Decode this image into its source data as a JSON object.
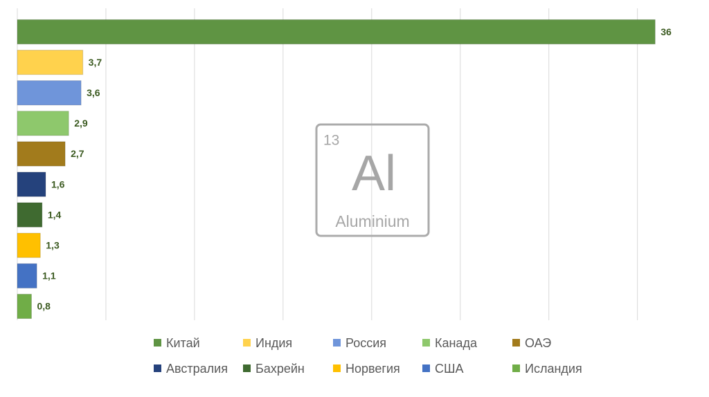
{
  "chart_data": {
    "type": "bar",
    "orientation": "horizontal",
    "xlim": [
      0,
      39
    ],
    "xticks": [
      0,
      5,
      10,
      15,
      20,
      25,
      30,
      35
    ],
    "grid": true,
    "legend": "bottom",
    "series": [
      {
        "name": "Китай",
        "color": "#5f9443",
        "values": [
          36
        ],
        "value_labels": [
          "36"
        ]
      },
      {
        "name": "Индия",
        "color": "#ffd24d",
        "values": [
          3.7
        ],
        "value_labels": [
          "3,7"
        ]
      },
      {
        "name": "Россия",
        "color": "#6f95da",
        "values": [
          3.6
        ],
        "value_labels": [
          "3,6"
        ]
      },
      {
        "name": "Канада",
        "color": "#8ec86c",
        "values": [
          2.9
        ],
        "value_labels": [
          "2,9"
        ]
      },
      {
        "name": "ОАЭ",
        "color": "#a27b1c",
        "values": [
          2.7
        ],
        "value_labels": [
          "2,7"
        ]
      },
      {
        "name": "Австралия",
        "color": "#25427c",
        "values": [
          1.6
        ],
        "value_labels": [
          "1,6"
        ]
      },
      {
        "name": "Бахрейн",
        "color": "#3f6a30",
        "values": [
          1.4
        ],
        "value_labels": [
          "1,4"
        ]
      },
      {
        "name": "Норвегия",
        "color": "#ffc000",
        "values": [
          1.3
        ],
        "value_labels": [
          "1,3"
        ]
      },
      {
        "name": "США",
        "color": "#4472c4",
        "values": [
          1.1
        ],
        "value_labels": [
          "1,1"
        ]
      },
      {
        "name": "Исландия",
        "color": "#70ad47",
        "values": [
          0.8
        ],
        "value_labels": [
          "0,8"
        ]
      }
    ],
    "annotation": {
      "number": "13",
      "symbol": "Al",
      "name": "Aluminium"
    }
  }
}
